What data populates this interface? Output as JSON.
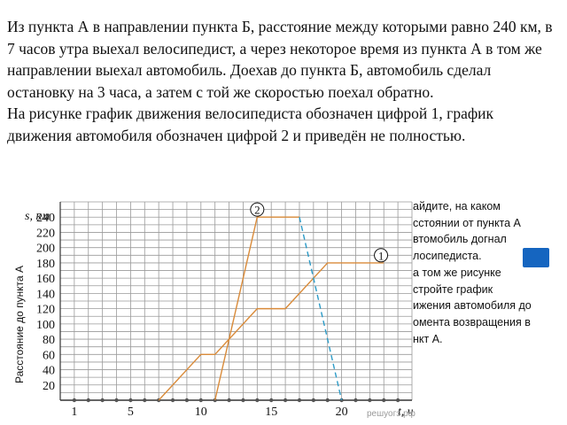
{
  "problem": {
    "paragraph1": "Из пункта А в направлении пункта Б, расстояние между которыми равно 240 км, в 7 часов утра выехал велосипедист, а через некоторое время из пункта А в том же направлении выехал автомобиль. Доехав до пункта Б, автомобиль сделал остановку на 3 часа, а затем с той же скоростью поехал обратно.",
    "paragraph2": "На рисунке график движения велосипедиста обозначен цифрой 1, график движения автомобиля обозначен цифрой 2 и приведён не полностью."
  },
  "task_panel": {
    "line1": "айдите, на каком",
    "line2": "сстоянии от пункта А",
    "line3": "втомобиль догнал",
    "line4": "лосипедиста.",
    "line5": "а том же рисунке",
    "line6": "стройте график",
    "line7": "ижения автомобиля до",
    "line8": "омента возвращения в",
    "line9": "нкт А."
  },
  "colors": {
    "grid": "#9a9a9a",
    "cyclist_line": "#d98b3a",
    "car_line": "#d98b3a",
    "car_return_dashed": "#2a9ac7",
    "dots": "#555555",
    "button_blue": "#1565c0"
  },
  "watermark": "решуогэ.рф",
  "chart_data": {
    "type": "line",
    "xlabel": "t, ч",
    "ylabel": "s, км",
    "side_label": "Расстояние до пункта А",
    "xlim": [
      0,
      25
    ],
    "ylim": [
      0,
      260
    ],
    "x_tick_labels": [
      "1",
      "5",
      "10",
      "15",
      "20"
    ],
    "x_tick_values": [
      1,
      5,
      10,
      15,
      20
    ],
    "y_ticks": [
      20,
      40,
      60,
      80,
      100,
      120,
      140,
      160,
      180,
      200,
      220,
      240
    ],
    "grid": true,
    "series": [
      {
        "name": "1",
        "x": [
          7,
          10,
          11,
          14,
          16,
          19,
          23
        ],
        "y": [
          0,
          60,
          60,
          120,
          120,
          180,
          180
        ],
        "style": "solid"
      },
      {
        "name": "2",
        "x": [
          11,
          14,
          17
        ],
        "y": [
          0,
          240,
          240
        ],
        "style": "solid"
      },
      {
        "name": "2 (return)",
        "x": [
          17,
          20
        ],
        "y": [
          240,
          0
        ],
        "style": "dashed"
      }
    ],
    "markers": [
      {
        "label": "2",
        "x": 14,
        "y": 250
      },
      {
        "label": "1",
        "x": 22.8,
        "y": 190
      }
    ]
  }
}
